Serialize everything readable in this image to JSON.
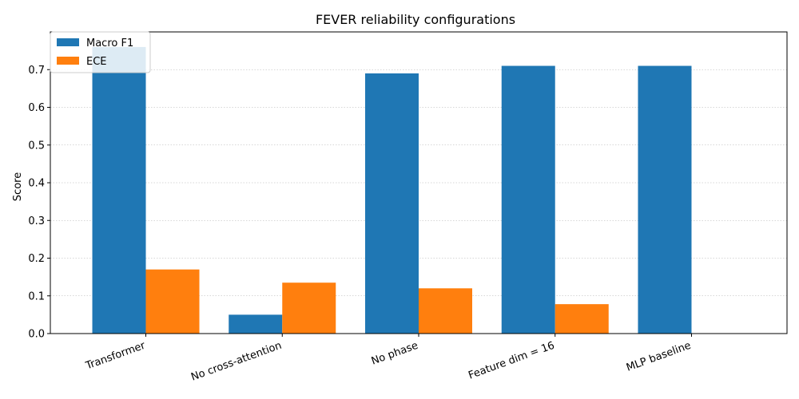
{
  "chart_data": {
    "type": "bar",
    "title": "FEVER reliability configurations",
    "xlabel": "",
    "ylabel": "Score",
    "categories": [
      "Transformer",
      "No cross-attention",
      "No phase",
      "Feature dim = 16",
      "MLP baseline"
    ],
    "series": [
      {
        "name": "Macro F1",
        "color": "#1f77b4",
        "values": [
          0.76,
          0.05,
          0.69,
          0.71,
          0.71
        ]
      },
      {
        "name": "ECE",
        "color": "#ff7f0e",
        "values": [
          0.17,
          0.135,
          0.12,
          0.078,
          0.0
        ]
      }
    ],
    "ylim": [
      0,
      0.8
    ],
    "yticks": [
      "0.0",
      "0.1",
      "0.2",
      "0.3",
      "0.4",
      "0.5",
      "0.6",
      "0.7"
    ],
    "grid": "y-dotted",
    "legend": "top-left"
  }
}
